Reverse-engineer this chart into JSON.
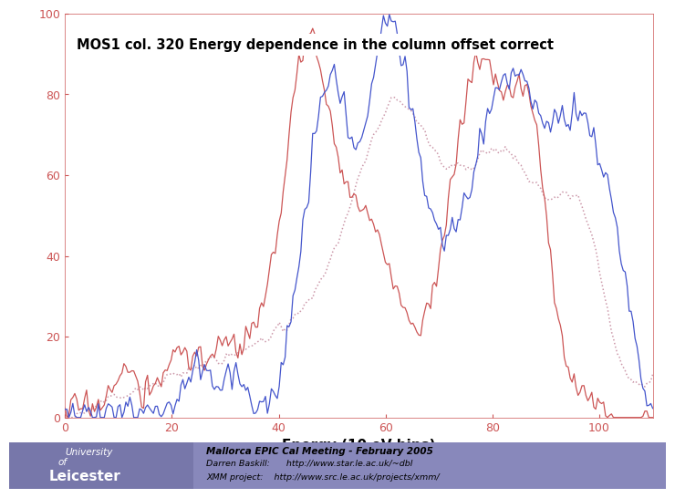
{
  "title": "MOS1 col. 320 Energy dependence in the column offset correct",
  "xlabel": "Energy (10 eV bins)",
  "xlim": [
    0,
    110
  ],
  "ylim": [
    0,
    100
  ],
  "xticks": [
    0,
    20,
    40,
    60,
    80,
    100
  ],
  "yticks": [
    0,
    20,
    40,
    60,
    80,
    100
  ],
  "tick_color": "#cc5555",
  "bg_plot": "#ffffff",
  "bg_fig": "#ffffff",
  "line_red_color": "#cc5555",
  "line_blue_color": "#4455cc",
  "line_dot_color": "#cc99aa",
  "footer_bg": "#8888bb",
  "footer_text1": "Mallorca EPIC Cal Meeting - February 2005",
  "footer_text2": "Darren Baskill:      http://www.star.le.ac.uk/~dbl",
  "footer_text3": "XMM project:    http://www.src.le.ac.uk/projects/xmm/"
}
